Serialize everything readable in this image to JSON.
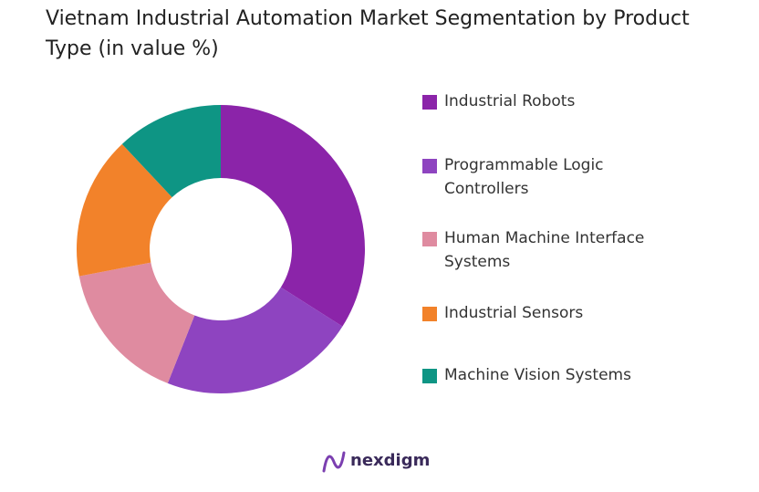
{
  "chart_data": {
    "type": "pie",
    "title": "Vietnam Industrial Automation Market Segmentation by Product Type (in value %)",
    "categories": [
      "Industrial Robots",
      "Programmable Logic Controllers",
      "Human Machine Interface Systems",
      "Industrial Sensors",
      "Machine Vision Systems"
    ],
    "values": [
      34,
      22,
      16,
      16,
      12
    ],
    "colors": [
      "#8b24a9",
      "#8e44c0",
      "#df8ba0",
      "#f2822a",
      "#0e9584"
    ],
    "donut": true,
    "legend": "right"
  },
  "brand": "nexdigm"
}
